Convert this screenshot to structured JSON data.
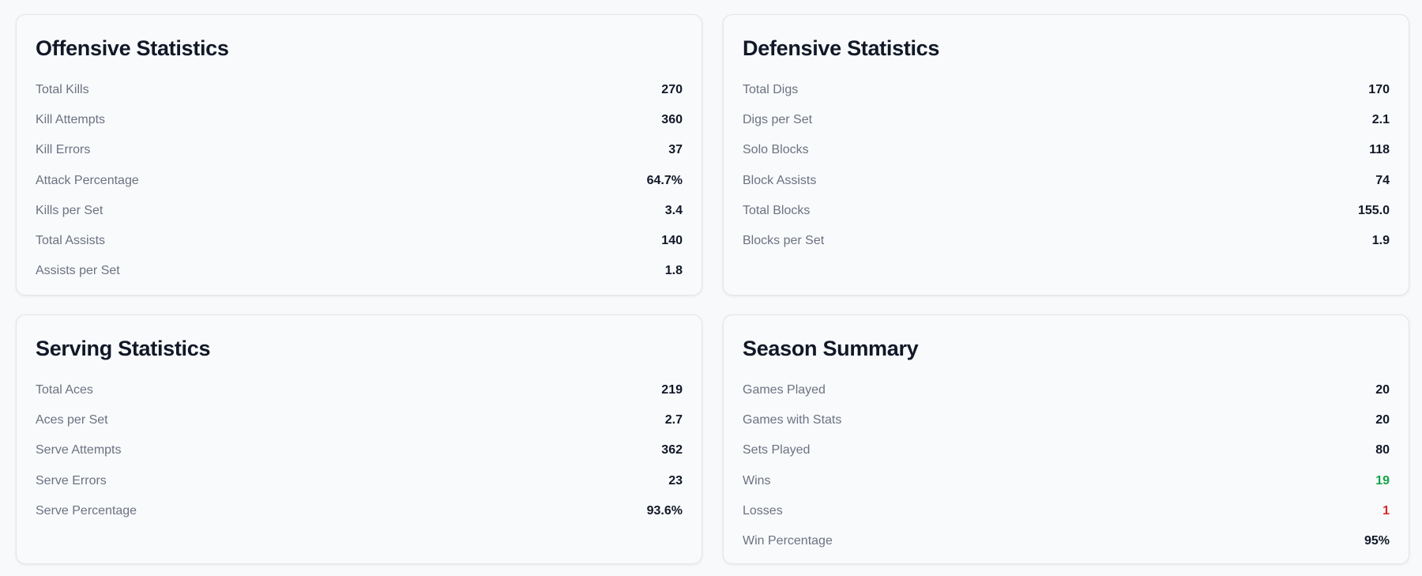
{
  "cards": [
    {
      "title": "Offensive Statistics",
      "rows": [
        {
          "label": "Total Kills",
          "value": "270"
        },
        {
          "label": "Kill Attempts",
          "value": "360"
        },
        {
          "label": "Kill Errors",
          "value": "37"
        },
        {
          "label": "Attack Percentage",
          "value": "64.7%"
        },
        {
          "label": "Kills per Set",
          "value": "3.4"
        },
        {
          "label": "Total Assists",
          "value": "140"
        },
        {
          "label": "Assists per Set",
          "value": "1.8"
        }
      ]
    },
    {
      "title": "Defensive Statistics",
      "rows": [
        {
          "label": "Total Digs",
          "value": "170"
        },
        {
          "label": "Digs per Set",
          "value": "2.1"
        },
        {
          "label": "Solo Blocks",
          "value": "118"
        },
        {
          "label": "Block Assists",
          "value": "74"
        },
        {
          "label": "Total Blocks",
          "value": "155.0"
        },
        {
          "label": "Blocks per Set",
          "value": "1.9"
        }
      ]
    },
    {
      "title": "Serving Statistics",
      "rows": [
        {
          "label": "Total Aces",
          "value": "219"
        },
        {
          "label": "Aces per Set",
          "value": "2.7"
        },
        {
          "label": "Serve Attempts",
          "value": "362"
        },
        {
          "label": "Serve Errors",
          "value": "23"
        },
        {
          "label": "Serve Percentage",
          "value": "93.6%"
        }
      ]
    },
    {
      "title": "Season Summary",
      "rows": [
        {
          "label": "Games Played",
          "value": "20"
        },
        {
          "label": "Games with Stats",
          "value": "20"
        },
        {
          "label": "Sets Played",
          "value": "80"
        },
        {
          "label": "Wins",
          "value": "19"
        },
        {
          "label": "Losses",
          "value": "1"
        },
        {
          "label": "Win Percentage",
          "value": "95%"
        }
      ]
    }
  ],
  "colors": {
    "win": "#16a34a",
    "loss": "#dc2626"
  }
}
